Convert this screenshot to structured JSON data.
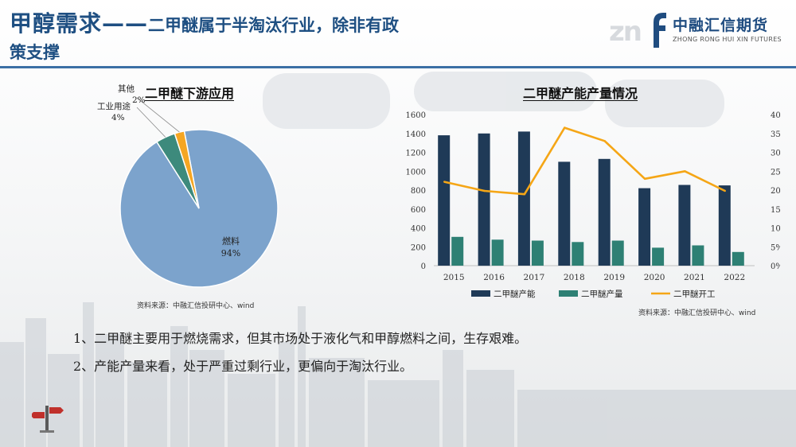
{
  "header": {
    "title_main": "甲醇需求——",
    "title_sub": "二甲醚属于半淘汰行业，除非有政",
    "title_line2": "策支撑"
  },
  "logo": {
    "mark": "zn",
    "name_cn": "中融汇信期货",
    "name_en": "ZHONG RONG HUI XIN FUTURES",
    "color": "#1f4c80"
  },
  "pie_chart": {
    "title": "二甲醚下游应用",
    "source": "资料来源：中融汇信投研中心、wind"
  },
  "bar_chart": {
    "title": "二甲醚产能产量情况",
    "source": "资料来源：中融汇信投研中心、wind"
  },
  "chart_data": [
    {
      "type": "pie",
      "title": "二甲醚下游应用",
      "slices": [
        {
          "label": "燃料",
          "value": 94,
          "display": "94%",
          "color": "#7ca3cc"
        },
        {
          "label": "工业用途",
          "value": 4,
          "display": "4%",
          "color": "#3d8a7c"
        },
        {
          "label": "其他",
          "value": 2,
          "display": "2%",
          "color": "#f5a623"
        }
      ]
    },
    {
      "type": "bar",
      "title": "二甲醚产能产量情况",
      "categories": [
        "2015",
        "2016",
        "2017",
        "2018",
        "2019",
        "2020",
        "2021",
        "2022"
      ],
      "ylim": [
        0,
        1600
      ],
      "yticks": [
        0,
        200,
        400,
        600,
        800,
        1000,
        1200,
        1400,
        1600
      ],
      "y2lim": [
        0,
        40
      ],
      "y2ticks": [
        "0%",
        "5%",
        "10%",
        "15%",
        "20%",
        "25%",
        "30%",
        "35%",
        "40%"
      ],
      "legend_position": "bottom",
      "series": [
        {
          "name": "二甲醚产能",
          "type": "bar",
          "axis": "left",
          "color": "#1f3a57",
          "values": [
            1380,
            1400,
            1420,
            1100,
            1130,
            820,
            855,
            850
          ]
        },
        {
          "name": "二甲醚产量",
          "type": "bar",
          "axis": "left",
          "color": "#2e8074",
          "values": [
            305,
            275,
            265,
            250,
            265,
            190,
            215,
            145
          ]
        },
        {
          "name": "二甲醚开工",
          "type": "line",
          "axis": "right",
          "color": "#f5a616",
          "values": [
            22.2,
            19.8,
            18.9,
            36.5,
            33.0,
            23.0,
            25.0,
            19.8
          ]
        }
      ]
    }
  ],
  "bullets": [
    "1、二甲醚主要用于燃烧需求，但其市场处于液化气和甲醇燃料之间，生存艰难。",
    "2、产能产量来看，处于严重过剩行业，更偏向于淘汰行业。"
  ]
}
